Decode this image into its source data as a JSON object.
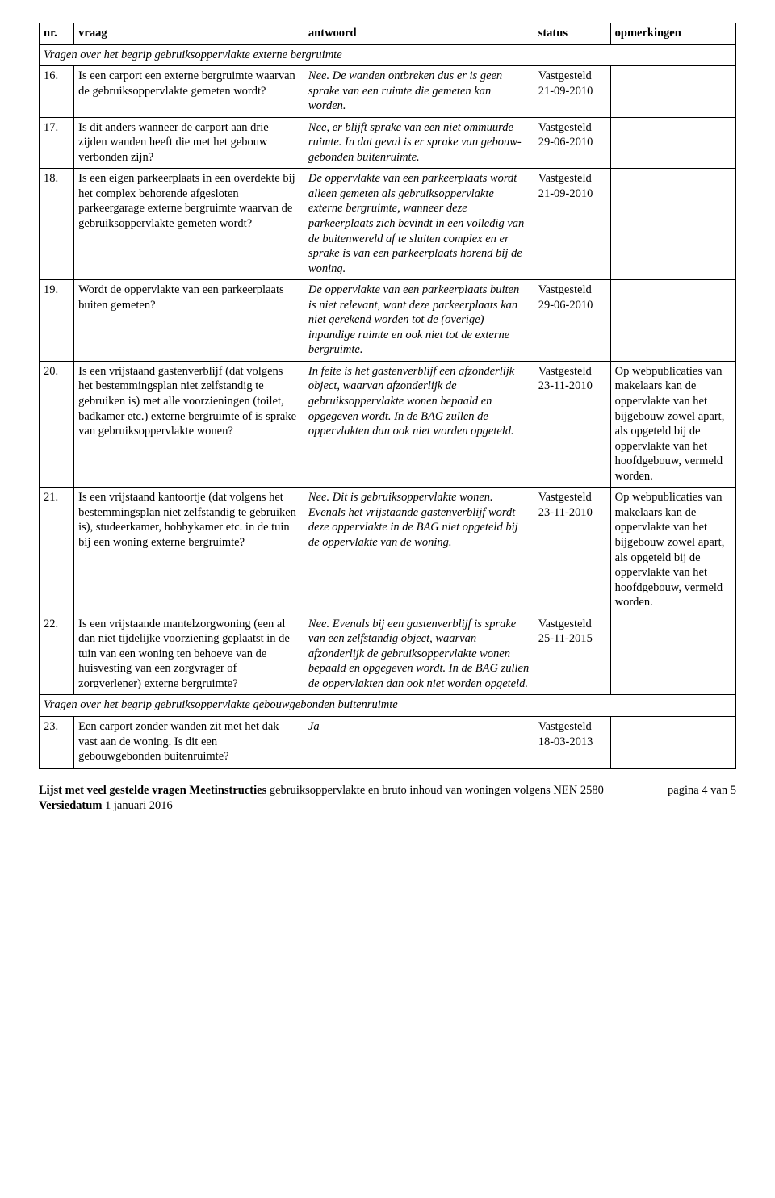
{
  "table": {
    "headers": {
      "nr": "nr.",
      "vraag": "vraag",
      "antwoord": "antwoord",
      "status": "status",
      "opm": "opmerkingen"
    },
    "section1": "Vragen over het begrip gebruiksoppervlakte externe bergruimte",
    "section2": "Vragen over het begrip gebruiksoppervlakte gebouwgebonden buitenruimte",
    "rows": {
      "r16": {
        "nr": "16.",
        "vraag": "Is een carport een externe bergruimte waarvan de gebruiksoppervlakte gemeten wordt?",
        "antwoord": "Nee. De wanden ontbreken dus er is geen sprake van een ruimte die gemeten kan worden.",
        "status": "Vastgesteld 21-09-2010",
        "opm": ""
      },
      "r17": {
        "nr": "17.",
        "vraag": "Is dit anders wanneer de carport aan drie zijden wanden heeft die met het gebouw verbonden zijn?",
        "antwoord": "Nee, er blijft sprake van een niet ommuurde ruimte. In dat geval is er sprake van gebouw-gebonden buitenruimte.",
        "status": "Vastgesteld 29-06-2010",
        "opm": ""
      },
      "r18": {
        "nr": "18.",
        "vraag": "Is een eigen parkeerplaats in een overdekte bij het complex behorende afgesloten parkeergarage externe bergruimte waarvan de gebruiksoppervlakte gemeten wordt?",
        "antwoord": "De oppervlakte van een parkeerplaats wordt alleen gemeten als gebruiksoppervlakte externe bergruimte, wanneer deze parkeerplaats zich bevindt in een volledig van de buitenwereld af te sluiten complex en er sprake is van een parkeerplaats horend bij de woning.",
        "status": "Vastgesteld 21-09-2010",
        "opm": ""
      },
      "r19": {
        "nr": "19.",
        "vraag": "Wordt de oppervlakte van een parkeerplaats buiten gemeten?",
        "antwoord": "De oppervlakte van een parkeerplaats buiten is niet relevant, want deze parkeerplaats kan niet gerekend worden tot de (overige) inpandige ruimte en ook niet tot de externe bergruimte.",
        "status": "Vastgesteld 29-06-2010",
        "opm": ""
      },
      "r20": {
        "nr": "20.",
        "vraag": "Is een vrijstaand gastenverblijf (dat volgens het bestemmingsplan niet zelfstandig te gebruiken is) met alle voorzieningen (toilet, badkamer etc.) externe bergruimte of is sprake van gebruiksoppervlakte wonen?",
        "antwoord": "In feite is het gastenverblijf een afzonderlijk object, waarvan afzonderlijk de gebruiksoppervlakte wonen bepaald en opgegeven wordt. In de BAG zullen de oppervlakten dan ook niet worden opgeteld.",
        "status": "Vastgesteld 23-11-2010",
        "opm": "Op webpublicaties van makelaars kan de oppervlakte van het bijgebouw zowel apart, als opgeteld bij de oppervlakte van het hoofdgebouw, vermeld worden."
      },
      "r21": {
        "nr": "21.",
        "vraag": "Is een vrijstaand kantoortje (dat volgens het bestemmingsplan niet zelfstandig te gebruiken is), studeerkamer, hobbykamer etc. in de tuin bij een woning externe bergruimte?",
        "antwoord": "Nee. Dit is gebruiksoppervlakte wonen. Evenals het vrijstaande gastenverblijf wordt deze oppervlakte in de BAG niet opgeteld bij de oppervlakte van de woning.",
        "status": "Vastgesteld 23-11-2010",
        "opm": "Op webpublicaties van makelaars kan de oppervlakte van het bijgebouw zowel apart, als opgeteld bij de oppervlakte van het hoofdgebouw, vermeld worden."
      },
      "r22": {
        "nr": "22.",
        "vraag": "Is een vrijstaande mantelzorgwoning (een al dan niet tijdelijke voorziening geplaatst in de tuin van een woning ten behoeve van de huisvesting van een zorgvrager of zorgverlener) externe bergruimte?",
        "antwoord": "Nee. Evenals bij een gastenverblijf is sprake van een zelfstandig object, waarvan afzonderlijk de gebruiksoppervlakte wonen bepaald en opgegeven wordt. In de BAG zullen de oppervlakten dan ook niet worden opgeteld.",
        "status": "Vastgesteld 25-11-2015",
        "opm": ""
      },
      "r23": {
        "nr": "23.",
        "vraag_a": "Een carport zonder wanden zit met het ",
        "vraag_b": "dak vast aan de woning. Is dit een gebouwgebonden buitenruimte?",
        "antwoord": "Ja",
        "status": "Vastgesteld 18-03-2013",
        "opm": ""
      }
    }
  },
  "footer": {
    "line1_a": "Lijst met veel gestelde vragen Meetinstructies ",
    "line1_b": "gebruiksoppervlakte en bruto inhoud van woningen volgens NEN 2580",
    "line2_a": "Versiedatum ",
    "line2_b": "1 januari 2016",
    "pager": "pagina 4 van 5"
  },
  "colors": {
    "text": "#000000",
    "background": "#ffffff",
    "border": "#000000"
  },
  "typography": {
    "body_font": "Times New Roman",
    "body_size_pt": 11,
    "line_height": 1.28
  }
}
